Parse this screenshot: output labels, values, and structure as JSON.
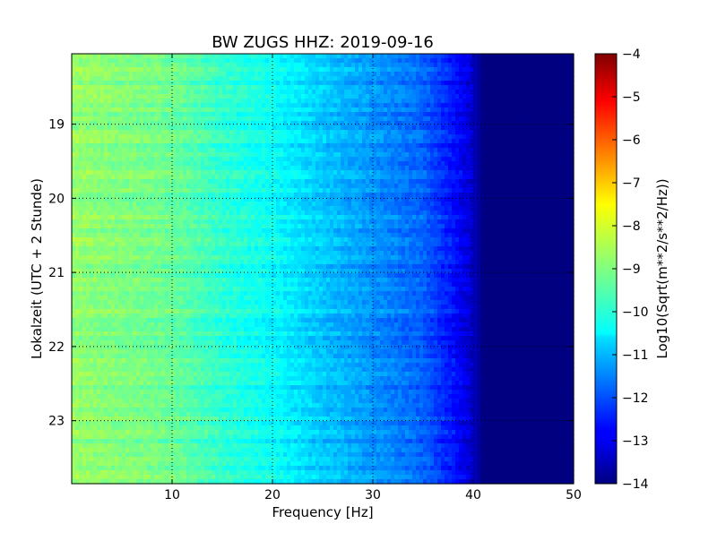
{
  "chart_data": {
    "type": "heatmap",
    "title": "BW ZUGS HHZ: 2019-09-16",
    "xlabel": "Frequency [Hz]",
    "ylabel": "Lokalzeit (UTC + 2 Stunde)",
    "xlim": [
      0,
      50
    ],
    "ylim": [
      18.05,
      23.85
    ],
    "x_ticks": [
      10,
      20,
      30,
      40,
      50
    ],
    "y_ticks": [
      19,
      20,
      21,
      22,
      23
    ],
    "y_axis_inverted": true,
    "grid": true,
    "colormap": "jet",
    "colorbar": {
      "label": "Log10(Sqrt(m**2/s**2/Hz))",
      "range": [
        -14,
        -4
      ],
      "ticks": [
        -4,
        -5,
        -6,
        -7,
        -8,
        -9,
        -10,
        -11,
        -12,
        -13,
        -14
      ]
    },
    "frequency_profile": {
      "frequency_hz": [
        0,
        5,
        10,
        15,
        20,
        25,
        30,
        35,
        38,
        40,
        41,
        50
      ],
      "log10_amplitude": [
        -8.8,
        -9.0,
        -9.2,
        -9.8,
        -10.2,
        -10.8,
        -11.3,
        -11.8,
        -12.6,
        -13.3,
        -14.0,
        -14.0
      ]
    }
  }
}
